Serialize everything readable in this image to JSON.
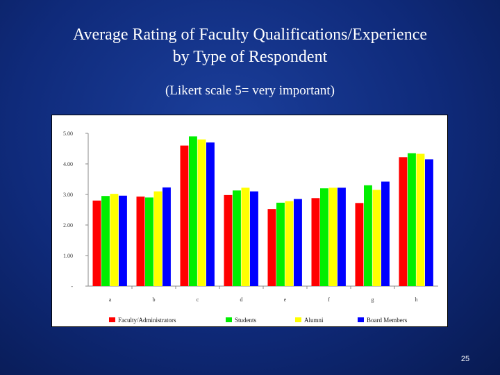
{
  "slide": {
    "title_line1": "Average Rating of Faculty Qualifications/Experience",
    "title_line2": "by Type of Respondent",
    "subtitle": "(Likert scale 5= very important)",
    "page_number": "25",
    "background_color": "#0f2a7a"
  },
  "chart_data": {
    "type": "bar",
    "title": "",
    "xlabel": "",
    "ylabel": "",
    "categories": [
      "a",
      "b",
      "c",
      "d",
      "e",
      "f",
      "g",
      "h"
    ],
    "ylim": [
      0,
      5
    ],
    "y_ticks": [
      0,
      1,
      2,
      3,
      4,
      5
    ],
    "y_tick_labels": [
      "-",
      "1.00",
      "2.00",
      "3.00",
      "4.00",
      "5.00"
    ],
    "grid": false,
    "legend_position": "bottom",
    "series": [
      {
        "name": "Faculty/Administrators",
        "color": "#ff0000",
        "values": [
          2.8,
          2.93,
          4.6,
          2.98,
          2.52,
          2.88,
          2.72,
          4.22
        ]
      },
      {
        "name": "Students",
        "color": "#00ee00",
        "values": [
          2.95,
          2.9,
          4.9,
          3.13,
          2.73,
          3.2,
          3.3,
          4.35
        ]
      },
      {
        "name": "Alumni",
        "color": "#ffff00",
        "values": [
          3.02,
          3.1,
          4.8,
          3.22,
          2.78,
          3.22,
          3.15,
          4.33
        ]
      },
      {
        "name": "Board Members",
        "color": "#0000ff",
        "values": [
          2.96,
          3.23,
          4.7,
          3.1,
          2.85,
          3.22,
          3.42,
          4.15
        ]
      }
    ]
  }
}
